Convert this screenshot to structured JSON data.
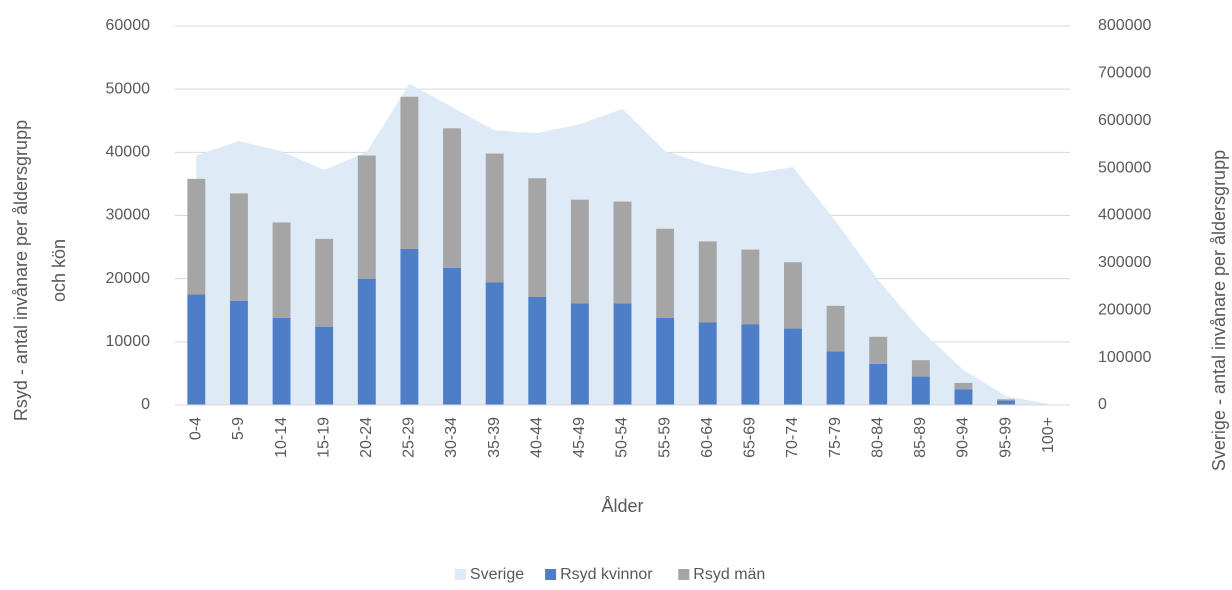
{
  "chart_data": {
    "type": "bar",
    "categories": [
      "0-4",
      "5-9",
      "10-14",
      "15-19",
      "20-24",
      "25-29",
      "30-34",
      "35-39",
      "40-44",
      "45-49",
      "50-54",
      "55-59",
      "60-64",
      "65-69",
      "70-74",
      "75-79",
      "80-84",
      "85-89",
      "90-94",
      "95-99",
      "100+"
    ],
    "series": [
      {
        "name": "Sverige",
        "color": "#deebf7",
        "type": "area",
        "axis": "y2",
        "values": [
          527000,
          557000,
          536000,
          496000,
          534000,
          678000,
          629000,
          580000,
          574000,
          593000,
          625000,
          536000,
          507000,
          488000,
          502000,
          388000,
          264000,
          158000,
          74000,
          19000,
          2000
        ]
      },
      {
        "name": "Rsyd kvinnor",
        "color": "#4f7ec9",
        "type": "bar",
        "values": [
          17500,
          16500,
          13800,
          12400,
          20000,
          24700,
          21700,
          19400,
          17100,
          16100,
          16100,
          13800,
          13100,
          12800,
          12100,
          8500,
          6500,
          4500,
          2500,
          700,
          50
        ]
      },
      {
        "name": "Rsyd män",
        "color": "#a5a5a5",
        "type": "bar",
        "values": [
          18300,
          17000,
          15100,
          13900,
          19500,
          24100,
          22100,
          20400,
          18800,
          16400,
          16100,
          14100,
          12800,
          11800,
          10500,
          7200,
          4300,
          2600,
          1000,
          200,
          10
        ]
      }
    ],
    "stacked": true,
    "xlabel": "Ålder",
    "ylabel": [
      "Rsyd - antal invånare per åldersgrupp",
      "och kön"
    ],
    "y2label": "Sverige - antal invånare per åldersgrupp",
    "ylim": [
      0,
      60000
    ],
    "yticks": [
      0,
      10000,
      20000,
      30000,
      40000,
      50000,
      60000
    ],
    "y2lim": [
      0,
      800000
    ],
    "y2ticks": [
      0,
      100000,
      200000,
      300000,
      400000,
      500000,
      600000,
      700000,
      800000
    ],
    "grid": true,
    "legend": "bottom"
  }
}
